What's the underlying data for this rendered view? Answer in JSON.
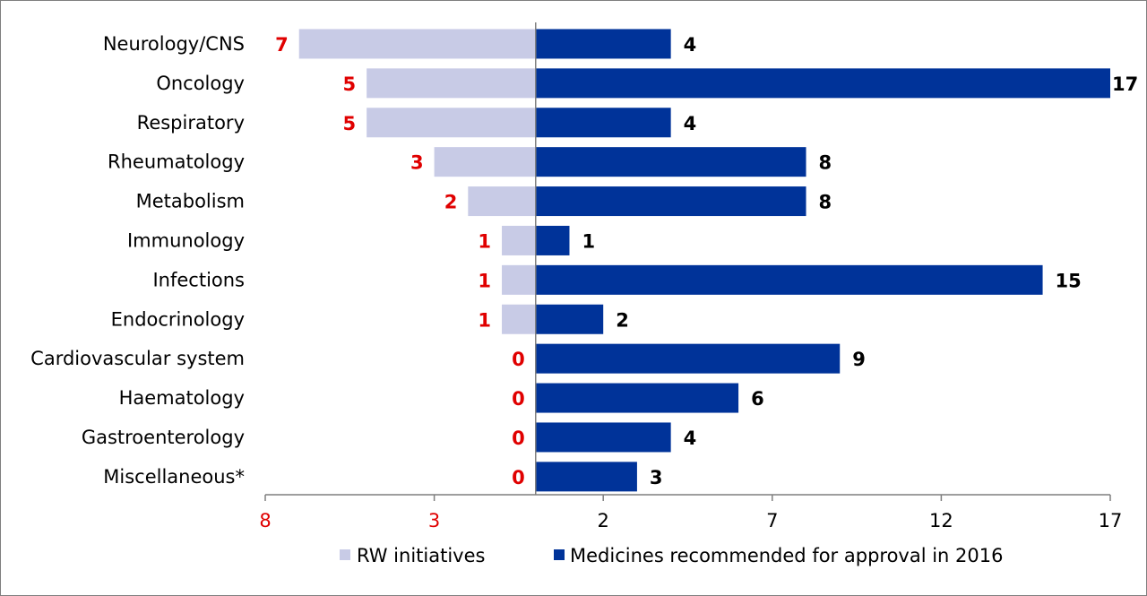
{
  "chart_data": {
    "type": "bar",
    "orientation": "horizontal-diverging",
    "categories": [
      "Neurology/CNS",
      "Oncology",
      "Respiratory",
      "Rheumatology",
      "Metabolism",
      "Immunology",
      "Infections",
      "Endocrinology",
      "Cardiovascular system",
      "Haematology",
      "Gastroenterology",
      "Miscellaneous*"
    ],
    "series": [
      {
        "name": "RW initiatives",
        "values": [
          7,
          5,
          5,
          3,
          2,
          1,
          1,
          1,
          0,
          0,
          0,
          0
        ],
        "color": "#c8cbe6",
        "label_color": "#e00000",
        "side": "left"
      },
      {
        "name": "Medicines recommended for approval in 2016",
        "values": [
          4,
          17,
          4,
          8,
          8,
          1,
          15,
          2,
          9,
          6,
          4,
          3
        ],
        "color": "#003399",
        "label_color": "#000000",
        "side": "right"
      }
    ],
    "x_ticks": [
      {
        "label": "8",
        "value": -8,
        "color": "#e00000"
      },
      {
        "label": "3",
        "value": -3,
        "color": "#e00000"
      },
      {
        "label": "2",
        "value": 2,
        "color": "#000000"
      },
      {
        "label": "7",
        "value": 7,
        "color": "#000000"
      },
      {
        "label": "12",
        "value": 12,
        "color": "#000000"
      },
      {
        "label": "17",
        "value": 17,
        "color": "#000000"
      }
    ],
    "xlim": [
      -8,
      17
    ],
    "legend_position": "bottom",
    "grid": false
  }
}
